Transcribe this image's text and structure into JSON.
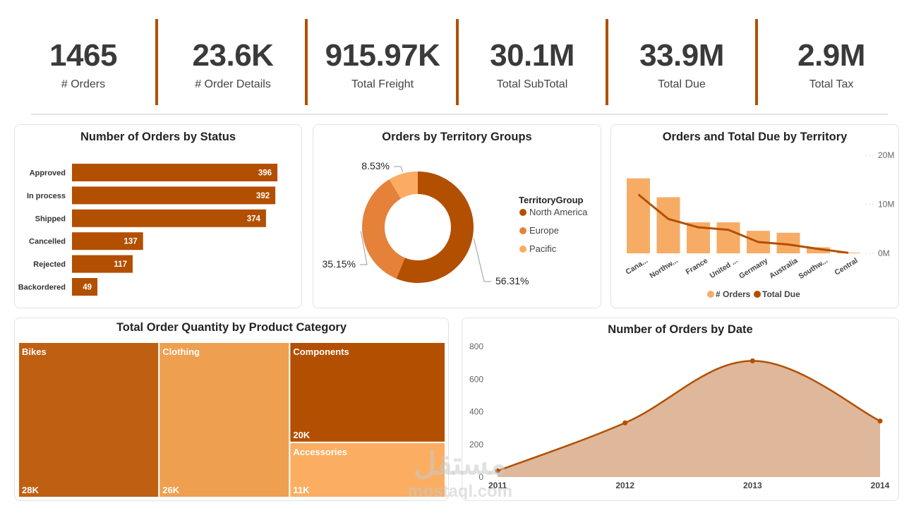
{
  "kpis": [
    {
      "value": "1465",
      "label": "# Orders"
    },
    {
      "value": "23.6K",
      "label": "# Order Details"
    },
    {
      "value": "915.97K",
      "label": "Total Freight"
    },
    {
      "value": "30.1M",
      "label": "Total SubTotal"
    },
    {
      "value": "33.9M",
      "label": "Total Due"
    },
    {
      "value": "2.9M",
      "label": "Total Tax"
    }
  ],
  "colors": {
    "dark": "#b34f00",
    "medium": "#e6813a",
    "light": "#fbab62",
    "bar_light": "#f7ac66",
    "area_fill": "#dfb79a",
    "treemap_bikes": "#bf5f12",
    "treemap_clothing": "#ee9f4f",
    "treemap_components": "#b34f00",
    "treemap_accessories": "#fbae62"
  },
  "watermark": {
    "arabic": "مستقل",
    "latin": "mostaql.com"
  },
  "chart_data": [
    {
      "id": "status",
      "type": "bar",
      "orientation": "horizontal",
      "title": "Number of Orders by Status",
      "categories": [
        "Approved",
        "In process",
        "Shipped",
        "Cancelled",
        "Rejected",
        "Backordered"
      ],
      "values": [
        396,
        392,
        374,
        137,
        117,
        49
      ],
      "labels": [
        "396",
        "392",
        "374",
        "137",
        "117",
        "49"
      ],
      "xlim": [
        0,
        400
      ]
    },
    {
      "id": "territory_groups",
      "type": "pie",
      "donut": true,
      "title": "Orders by Territory Groups",
      "legend_title": "TerritoryGroup",
      "legend_position": "right",
      "slices": [
        {
          "name": "North America",
          "value": 56.31,
          "label": "56.31%"
        },
        {
          "name": "Europe",
          "value": 35.15,
          "label": "35.15%"
        },
        {
          "name": "Pacific",
          "value": 8.53,
          "label": "8.53%"
        }
      ]
    },
    {
      "id": "territory",
      "type": "bar",
      "combo_line": true,
      "title": "Orders and Total Due by Territory",
      "categories": [
        "Cana...",
        "Northw...",
        "France",
        "United ...",
        "Germany",
        "Australia",
        "Southw...",
        "Central"
      ],
      "series": [
        {
          "name": "# Orders",
          "type": "bar",
          "values": [
            310,
            232,
            128,
            128,
            93,
            85,
            25,
            3
          ]
        },
        {
          "name": "Total Due",
          "type": "line",
          "axis": "right",
          "values": [
            12000000,
            7000000,
            5300000,
            4800000,
            2300000,
            1800000,
            900000,
            100000
          ]
        }
      ],
      "bar_ylim": [
        0,
        420
      ],
      "ylim_right": [
        0,
        20000000
      ],
      "right_ticks": [
        "20M",
        "10M",
        "0M"
      ],
      "legend_position": "bottom"
    },
    {
      "id": "category",
      "type": "treemap",
      "title": "Total Order Quantity by Product Category",
      "items": [
        {
          "name": "Bikes",
          "value": 28000,
          "label": "28K"
        },
        {
          "name": "Clothing",
          "value": 26000,
          "label": "26K"
        },
        {
          "name": "Components",
          "value": 20000,
          "label": "20K"
        },
        {
          "name": "Accessories",
          "value": 11000,
          "label": "11K"
        }
      ]
    },
    {
      "id": "date",
      "type": "area",
      "title": "Number of Orders by Date",
      "x": [
        "2011",
        "2012",
        "2013",
        "2014"
      ],
      "values": [
        38,
        332,
        712,
        343
      ],
      "ylim": [
        0,
        800
      ],
      "yticks": [
        "800",
        "600",
        "400",
        "200",
        "0"
      ]
    }
  ]
}
